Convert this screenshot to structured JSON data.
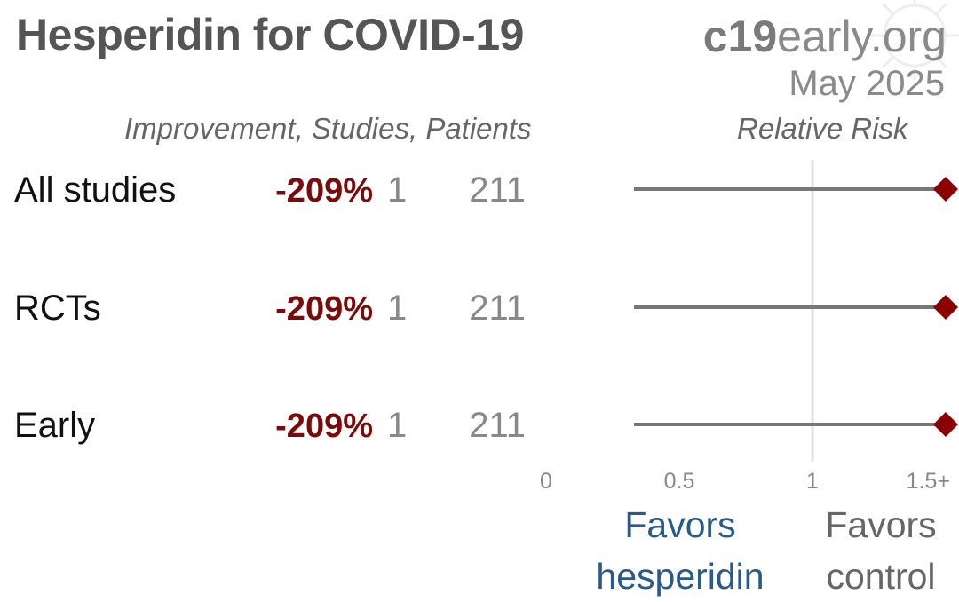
{
  "header": {
    "title": "Hesperidin for COVID-19",
    "brand_bold": "c19",
    "brand_rest": "early.org",
    "date": "May 2025"
  },
  "columns": {
    "left_header": "Improvement, Studies, Patients",
    "right_header": "Relative Risk"
  },
  "rows": [
    {
      "label": "All studies",
      "improvement": "-209%",
      "studies": "1",
      "patients": "211"
    },
    {
      "label": "RCTs",
      "improvement": "-209%",
      "studies": "1",
      "patients": "211"
    },
    {
      "label": "Early",
      "improvement": "-209%",
      "studies": "1",
      "patients": "211"
    }
  ],
  "favors": {
    "left": "Favors hesperidin",
    "right": "Favors control"
  },
  "colors": {
    "marker": "#8b0000",
    "line": "#777777",
    "reference": "#e0e0e0",
    "favors_left": "#2a5a8a"
  },
  "chart_data": {
    "type": "forest",
    "x_ticks": [
      "0",
      "0.5",
      "1",
      "1.5+"
    ],
    "xlim": [
      0,
      1.5
    ],
    "reference_line": 1,
    "series": [
      {
        "category": "All studies",
        "rr": 1.5,
        "ci_low": 0.33,
        "ci_high": 1.5
      },
      {
        "category": "RCTs",
        "rr": 1.5,
        "ci_low": 0.33,
        "ci_high": 1.5
      },
      {
        "category": "Early",
        "rr": 1.5,
        "ci_low": 0.33,
        "ci_high": 1.5
      }
    ]
  }
}
